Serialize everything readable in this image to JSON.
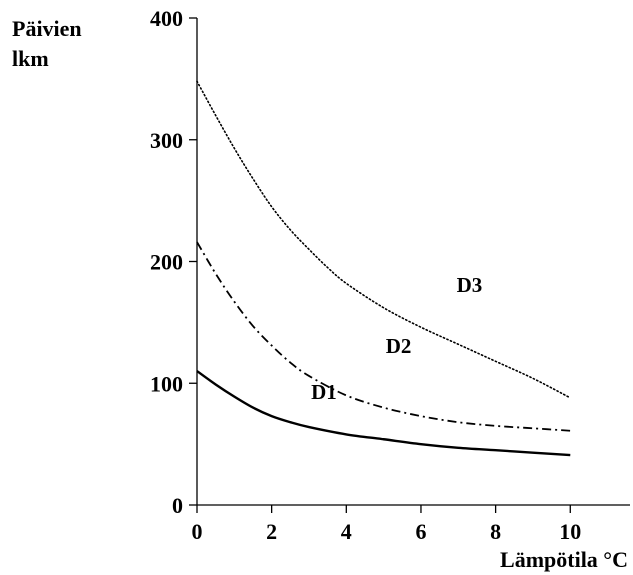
{
  "chart_data": {
    "type": "line",
    "title": "",
    "ylabel_lines": [
      "Päivien",
      "lkm"
    ],
    "xlabel": "Lämpötila °C",
    "xlim": [
      0,
      11.6
    ],
    "ylim": [
      0,
      400
    ],
    "x_ticks": [
      0,
      2,
      4,
      6,
      8,
      10
    ],
    "x_tick_labels": [
      "0",
      "2",
      "4",
      "6",
      "8",
      "10"
    ],
    "y_ticks": [
      0,
      100,
      200,
      300,
      400
    ],
    "y_tick_labels": [
      "0",
      "100",
      "200",
      "300",
      "400"
    ],
    "grid": false,
    "legend": "none",
    "series": [
      {
        "name": "D1",
        "style": "solid",
        "x": [
          0,
          0.5,
          1,
          1.5,
          2,
          2.5,
          3,
          4,
          5,
          6,
          7,
          8,
          9,
          10
        ],
        "y": [
          110,
          99,
          89,
          80,
          73,
          68,
          64,
          58,
          54,
          50,
          47,
          45,
          43,
          41
        ],
        "label_at": [
          3.4,
          87
        ]
      },
      {
        "name": "D2",
        "style": "dashdot",
        "x": [
          0,
          0.5,
          1,
          1.5,
          2,
          2.5,
          3,
          4,
          5,
          6,
          7,
          8,
          9,
          10
        ],
        "y": [
          216,
          190,
          167,
          147,
          131,
          117,
          106,
          90,
          80,
          73,
          68,
          65,
          63,
          61
        ],
        "label_at": [
          5.4,
          125
        ]
      },
      {
        "name": "D3",
        "style": "dotted",
        "x": [
          0,
          0.5,
          1,
          1.5,
          2,
          2.5,
          3,
          3.5,
          4,
          5,
          6,
          7,
          8,
          9,
          10
        ],
        "y": [
          348,
          320,
          293,
          268,
          245,
          226,
          210,
          195,
          182,
          162,
          146,
          132,
          118,
          104,
          88
        ],
        "label_at": [
          7.3,
          175
        ]
      }
    ]
  }
}
